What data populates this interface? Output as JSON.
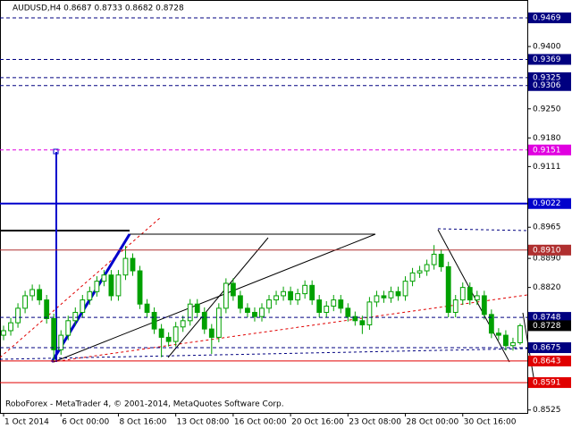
{
  "chart_data": {
    "type": "candlestick",
    "title": "AUDUSD,H4  0.8687 0.8733 0.8682 0.8728",
    "footer": "RoboForex - MetaTrader 4, © 2001-2014, MetaQuotes Software Corp.",
    "ylim": [
      0.8518,
      0.9512
    ],
    "xlim": [
      -0.5,
      73
    ],
    "yticks": [
      {
        "value": 0.94,
        "label": "0.9400"
      },
      {
        "value": 0.925,
        "label": "0.9250"
      },
      {
        "value": 0.918,
        "label": "0.9180"
      },
      {
        "value": 0.9111,
        "label": "0.9111"
      },
      {
        "value": 0.8965,
        "label": "0.8965"
      },
      {
        "value": 0.889,
        "label": "0.8890"
      },
      {
        "value": 0.882,
        "label": "0.8820"
      },
      {
        "value": 0.8525,
        "label": "0.8525"
      }
    ],
    "xticks": [
      {
        "value": 0,
        "label": "1 Oct 2014"
      },
      {
        "value": 8,
        "label": "6 Oct 00:00"
      },
      {
        "value": 16,
        "label": "8 Oct 16:00"
      },
      {
        "value": 24,
        "label": "13 Oct 08:00"
      },
      {
        "value": 32,
        "label": "16 Oct 00:00"
      },
      {
        "value": 40,
        "label": "20 Oct 16:00"
      },
      {
        "value": 48,
        "label": "23 Oct 08:00"
      },
      {
        "value": 56,
        "label": "28 Oct 00:00"
      },
      {
        "value": 64,
        "label": "30 Oct 16:00"
      }
    ],
    "levels": [
      {
        "value": 0.9469,
        "label": "0.9469",
        "color": "#000080",
        "style": "dashed"
      },
      {
        "value": 0.9369,
        "label": "0.9369",
        "color": "#000080",
        "style": "dashed"
      },
      {
        "value": 0.9325,
        "label": "0.9325",
        "color": "#000080",
        "style": "dashed"
      },
      {
        "value": 0.9306,
        "label": "0.9306",
        "color": "#000080",
        "style": "dashed"
      },
      {
        "value": 0.9151,
        "label": "0.9151",
        "color": "#e000e0",
        "style": "dashed"
      },
      {
        "value": 0.9022,
        "label": "0.9022",
        "color": "#0000cc",
        "style": "solid"
      },
      {
        "value": 0.891,
        "label": "0.8910",
        "color": "#b03030",
        "style": "solid"
      },
      {
        "value": 0.8748,
        "label": "0.8748",
        "color": "#000080",
        "style": "dashed"
      },
      {
        "value": 0.8728,
        "label": "0.8728",
        "color": "#000000",
        "style": "none"
      },
      {
        "value": 0.8675,
        "label": "0.8675",
        "color": "#000080",
        "style": "dashed"
      },
      {
        "value": 0.8643,
        "label": "0.8643",
        "color": "#e00000",
        "style": "solid"
      },
      {
        "value": 0.8591,
        "label": "0.8591",
        "color": "#e00000",
        "style": "solid"
      }
    ],
    "color": "#00a000",
    "open": [
      0.8705,
      0.8716,
      0.8735,
      0.877,
      0.88,
      0.8815,
      0.879,
      0.8745,
      0.867,
      0.8705,
      0.874,
      0.876,
      0.879,
      0.881,
      0.8835,
      0.885,
      0.88,
      0.885,
      0.889,
      0.886,
      0.878,
      0.876,
      0.872,
      0.87,
      0.869,
      0.8725,
      0.874,
      0.878,
      0.876,
      0.872,
      0.87,
      0.877,
      0.883,
      0.88,
      0.877,
      0.876,
      0.875,
      0.877,
      0.879,
      0.88,
      0.881,
      0.879,
      0.8805,
      0.8825,
      0.879,
      0.876,
      0.8775,
      0.879,
      0.877,
      0.875,
      0.874,
      0.873,
      0.8785,
      0.88,
      0.8795,
      0.881,
      0.88,
      0.8835,
      0.8855,
      0.886,
      0.8875,
      0.89,
      0.887,
      0.876,
      0.879,
      0.882,
      0.879,
      0.88,
      0.8755,
      0.871,
      0.8705,
      0.868,
      0.8687
    ],
    "high": [
      0.8728,
      0.8747,
      0.8782,
      0.8812,
      0.8827,
      0.8827,
      0.8802,
      0.8757,
      0.8717,
      0.8752,
      0.8772,
      0.8802,
      0.8822,
      0.8847,
      0.8862,
      0.8862,
      0.8862,
      0.892,
      0.8902,
      0.8872,
      0.8792,
      0.8772,
      0.8732,
      0.8712,
      0.8737,
      0.8752,
      0.8792,
      0.8792,
      0.8772,
      0.8732,
      0.8782,
      0.8842,
      0.8842,
      0.8812,
      0.8782,
      0.8772,
      0.8782,
      0.8802,
      0.8812,
      0.8822,
      0.8822,
      0.8817,
      0.8837,
      0.8837,
      0.8802,
      0.8787,
      0.8802,
      0.8802,
      0.8782,
      0.8762,
      0.8752,
      0.8797,
      0.8812,
      0.8812,
      0.8822,
      0.8822,
      0.8847,
      0.8867,
      0.8872,
      0.8887,
      0.8922,
      0.8912,
      0.8882,
      0.8802,
      0.8832,
      0.8832,
      0.8812,
      0.8812,
      0.8767,
      0.8722,
      0.8717,
      0.8699,
      0.8733
    ],
    "low": [
      0.8693,
      0.8704,
      0.8723,
      0.8758,
      0.8788,
      0.8778,
      0.8733,
      0.8643,
      0.8658,
      0.8693,
      0.8728,
      0.8748,
      0.8778,
      0.8798,
      0.8823,
      0.8788,
      0.8788,
      0.8838,
      0.8848,
      0.8768,
      0.8748,
      0.8708,
      0.8652,
      0.8678,
      0.8678,
      0.8713,
      0.8728,
      0.8748,
      0.8708,
      0.866,
      0.8688,
      0.8758,
      0.8788,
      0.8758,
      0.8748,
      0.8738,
      0.8738,
      0.8758,
      0.8778,
      0.8788,
      0.8778,
      0.8778,
      0.8793,
      0.8778,
      0.8748,
      0.8748,
      0.8763,
      0.8758,
      0.8738,
      0.8728,
      0.8708,
      0.8718,
      0.8773,
      0.8783,
      0.8783,
      0.8788,
      0.8788,
      0.8823,
      0.8843,
      0.8848,
      0.8863,
      0.8858,
      0.8748,
      0.8748,
      0.8778,
      0.8778,
      0.8778,
      0.8743,
      0.8698,
      0.8693,
      0.8668,
      0.8668,
      0.8682
    ],
    "close": [
      0.8716,
      0.8735,
      0.877,
      0.88,
      0.8815,
      0.879,
      0.8745,
      0.867,
      0.8705,
      0.874,
      0.876,
      0.879,
      0.881,
      0.8835,
      0.885,
      0.88,
      0.885,
      0.889,
      0.886,
      0.878,
      0.876,
      0.872,
      0.87,
      0.869,
      0.8725,
      0.874,
      0.878,
      0.876,
      0.872,
      0.87,
      0.877,
      0.883,
      0.88,
      0.877,
      0.876,
      0.875,
      0.877,
      0.879,
      0.88,
      0.881,
      0.879,
      0.8805,
      0.8825,
      0.879,
      0.876,
      0.8775,
      0.879,
      0.877,
      0.875,
      0.874,
      0.873,
      0.8785,
      0.88,
      0.8795,
      0.881,
      0.88,
      0.8835,
      0.8855,
      0.886,
      0.8875,
      0.89,
      0.887,
      0.876,
      0.879,
      0.882,
      0.879,
      0.88,
      0.8755,
      0.871,
      0.8705,
      0.868,
      0.8687,
      0.8728
    ]
  }
}
